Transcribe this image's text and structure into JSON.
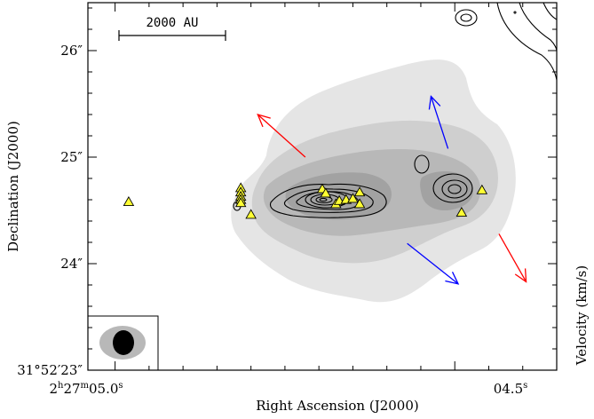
{
  "chart_data": {
    "type": "scatter",
    "title": "",
    "xlabel": "Right Ascension (J2000)",
    "ylabel": "Declination (J2000)",
    "right_label": "Velocity (km/s)",
    "x_ticks": [
      {
        "pos": 0.0,
        "label": "2h27m05.0s",
        "parts": {
          "h": "2",
          "hs": "h",
          "m": "27",
          "ms": "m",
          "s": "05.0",
          "ss": "s"
        }
      },
      {
        "pos": 1.0,
        "label": "04.5s",
        "parts": {
          "s": "04.5",
          "ss": "s"
        }
      }
    ],
    "y_ticks": [
      {
        "value": 26,
        "label": "26″"
      },
      {
        "value": 25,
        "label": "25″"
      },
      {
        "value": 24,
        "label": "24″"
      },
      {
        "value": 23,
        "label": "31°52′23″"
      }
    ],
    "xlim": [
      -0.08,
      1.3
    ],
    "ylim": [
      23.0,
      26.45
    ],
    "scalebar": {
      "label": "2000 AU"
    },
    "outflow_arrows": [
      {
        "color": "red",
        "from": [
          0.56,
          25.0
        ],
        "to": [
          0.42,
          25.4
        ]
      },
      {
        "color": "blue",
        "from": [
          0.98,
          25.08
        ],
        "to": [
          0.93,
          25.57
        ]
      },
      {
        "color": "blue",
        "from": [
          0.86,
          24.19
        ],
        "to": [
          1.01,
          23.81
        ]
      },
      {
        "color": "red",
        "from": [
          1.13,
          24.28
        ],
        "to": [
          1.21,
          23.83
        ]
      }
    ],
    "sources": [
      {
        "x": 0.04,
        "y": 24.58
      },
      {
        "x": 0.37,
        "y": 24.71
      },
      {
        "x": 0.37,
        "y": 24.67
      },
      {
        "x": 0.37,
        "y": 24.63
      },
      {
        "x": 0.37,
        "y": 24.6
      },
      {
        "x": 0.37,
        "y": 24.57
      },
      {
        "x": 0.4,
        "y": 24.46
      },
      {
        "x": 0.61,
        "y": 24.7
      },
      {
        "x": 0.62,
        "y": 24.66
      },
      {
        "x": 0.65,
        "y": 24.56
      },
      {
        "x": 0.66,
        "y": 24.59
      },
      {
        "x": 0.68,
        "y": 24.6
      },
      {
        "x": 0.7,
        "y": 24.61
      },
      {
        "x": 0.72,
        "y": 24.67
      },
      {
        "x": 0.72,
        "y": 24.56
      },
      {
        "x": 1.02,
        "y": 24.48
      },
      {
        "x": 1.08,
        "y": 24.69
      }
    ],
    "grid": false,
    "legend": "none"
  }
}
